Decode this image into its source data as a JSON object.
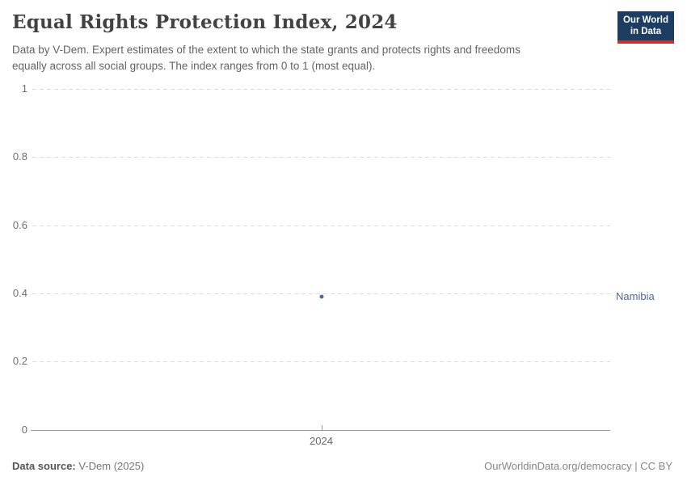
{
  "header": {
    "title": "Equal Rights Protection Index, 2024",
    "subtitle_line1": "Data by V-Dem. Expert estimates of the extent to which the state grants and protects rights and freedoms",
    "subtitle_line2": "equally across all social groups. The index ranges from 0 to 1 (most equal)."
  },
  "logo": {
    "line1": "Our World",
    "line2": "in Data",
    "bg_color": "#1d3d63",
    "accent_color": "#c5332d"
  },
  "chart_data": {
    "type": "scatter",
    "title": "Equal Rights Protection Index, 2024",
    "x_ticks": [
      2024
    ],
    "x_tick_labels": [
      "2024"
    ],
    "y_ticks": [
      0,
      0.2,
      0.4,
      0.6,
      0.8,
      1
    ],
    "y_tick_labels": [
      "0",
      "0.2",
      "0.4",
      "0.6",
      "0.8",
      "1"
    ],
    "ylim": [
      0,
      1
    ],
    "grid": "horizontal dashed, solid zero baseline",
    "legend_position": "right entity label",
    "series": [
      {
        "name": "Namibia",
        "color": "#4c6a9c",
        "points": [
          {
            "x": 2024,
            "y": 0.39
          }
        ]
      }
    ]
  },
  "footer": {
    "source_label": "Data source:",
    "source_value": "V-Dem (2025)",
    "url": "OurWorldinData.org/democracy",
    "separator": " | ",
    "license": "CC BY"
  }
}
